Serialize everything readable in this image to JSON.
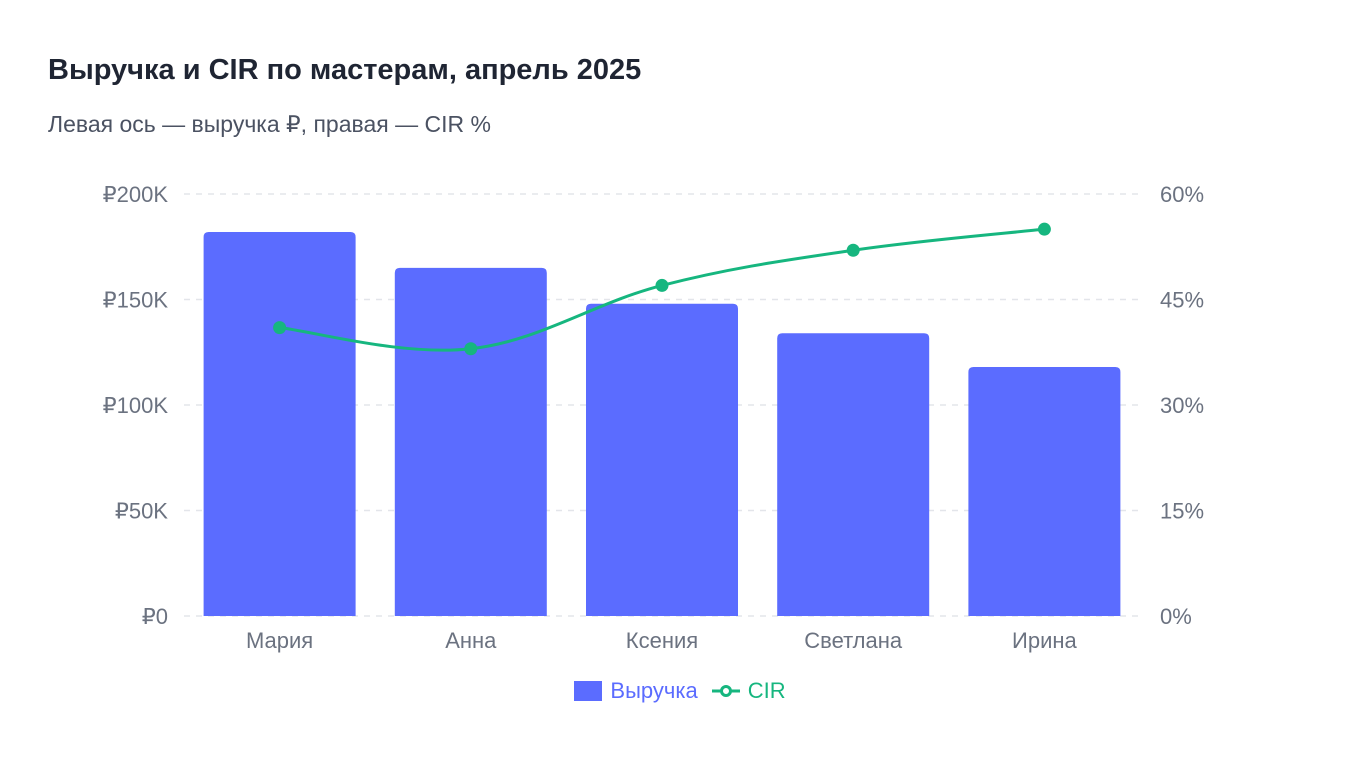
{
  "title": "Выручка и CIR по мастерам, апрель 2025",
  "subtitle": "Левая ось — выручка ₽, правая — CIR %",
  "colors": {
    "bar": "#5b6cff",
    "line": "#16b67f",
    "grid": "#e3e5ea",
    "axis_text": "#6b7280"
  },
  "chart_data": {
    "type": "bar",
    "categories": [
      "Мария",
      "Анна",
      "Ксения",
      "Светлана",
      "Ирина"
    ],
    "series": [
      {
        "name": "Выручка",
        "type": "bar",
        "axis": "left",
        "values": [
          182000,
          165000,
          148000,
          134000,
          118000
        ]
      },
      {
        "name": "CIR",
        "type": "line",
        "axis": "right",
        "values": [
          41,
          38,
          47,
          52,
          55
        ]
      }
    ],
    "y_left": {
      "ylim": [
        0,
        200000
      ],
      "ticks": [
        0,
        50000,
        100000,
        150000,
        200000
      ],
      "tick_labels": [
        "₽0",
        "₽50K",
        "₽100K",
        "₽150K",
        "₽200K"
      ]
    },
    "y_right": {
      "ylim": [
        0,
        60
      ],
      "ticks": [
        0,
        15,
        30,
        45,
        60
      ],
      "tick_labels": [
        "0%",
        "15%",
        "30%",
        "45%",
        "60%"
      ]
    },
    "grid": true,
    "legend": "bottom-center"
  }
}
